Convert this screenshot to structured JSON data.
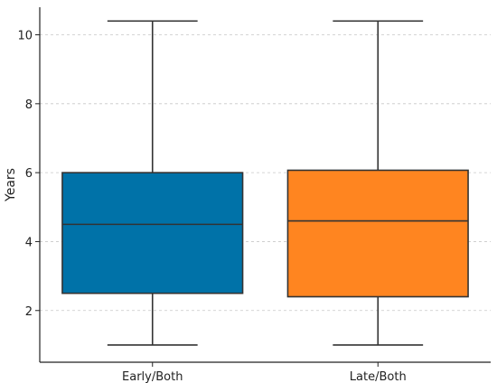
{
  "chart_data": {
    "type": "box",
    "title": "",
    "xlabel": "",
    "ylabel": "Years",
    "ylim": [
      0.5,
      10.8
    ],
    "yticks": [
      2,
      4,
      6,
      8,
      10
    ],
    "grid": true,
    "categories": [
      "Early/Both",
      "Late/Both"
    ],
    "series": [
      {
        "category": "Early/Both",
        "color": "#0072a8",
        "min": 1.0,
        "q1": 2.5,
        "median": 4.5,
        "q3": 6.0,
        "max": 10.4
      },
      {
        "category": "Late/Both",
        "color": "#ff8520",
        "min": 1.0,
        "q1": 2.4,
        "median": 4.6,
        "q3": 6.07,
        "max": 10.4
      }
    ]
  }
}
